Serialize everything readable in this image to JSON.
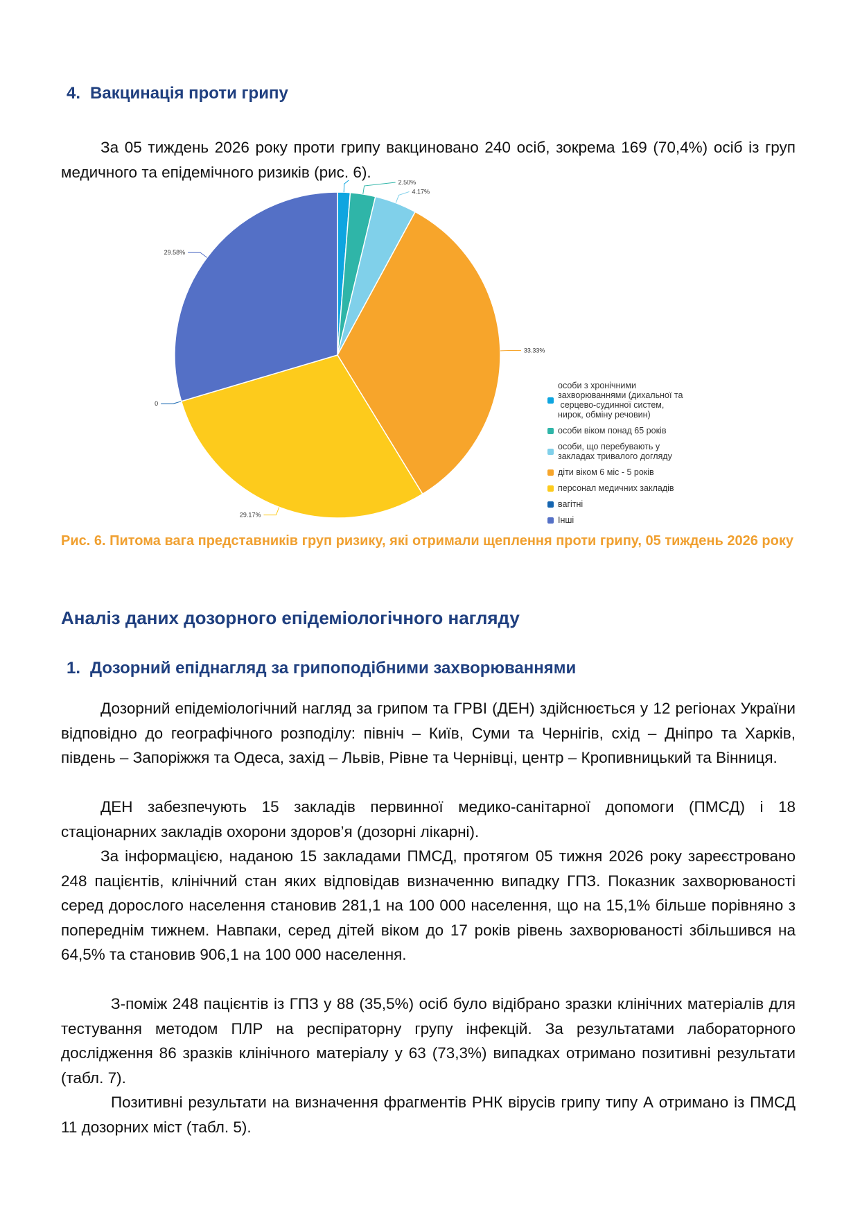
{
  "section4": {
    "number": "4.",
    "title": "Вакцинація проти грипу"
  },
  "vacc_paragraph": "За 05 тиждень 2026 року проти грипу вакциновано 240 осіб, зокрема 169 (70,4%) осіб із груп медичного та епідемічного ризиків (рис. 6).",
  "chart_data": {
    "type": "pie",
    "title": "Рис. 6. Питома вага представників груп ризику, які отримали щеплення проти грипу, 05 тиждень 2026 року",
    "legend_position": "right",
    "slices": [
      {
        "name": "особи з хронічними захворюваннями (дихальної та серцево-судинної систем, нирок, обміну речовин)",
        "value": 1.25,
        "label": "1.25%",
        "color": "#0ea5e0"
      },
      {
        "name": "особи віком понад 65 років",
        "value": 2.5,
        "label": "2.50%",
        "color": "#2fb5a8"
      },
      {
        "name": "особи, що перебувають у закладах тривалого догляду",
        "value": 4.17,
        "label": "4.17%",
        "color": "#80d0ea"
      },
      {
        "name": "діти віком 6 міс - 5 років",
        "value": 33.33,
        "label": "33.33%",
        "color": "#f7a52b"
      },
      {
        "name": "персонал медичних закладів",
        "value": 29.17,
        "label": "29.17%",
        "color": "#fdcb1c"
      },
      {
        "name": "вагітні",
        "value": 0,
        "label": "0",
        "color": "#1565b0"
      },
      {
        "name": "Інші",
        "value": 29.58,
        "label": "29.58%",
        "color": "#5470c6"
      }
    ]
  },
  "legend_lines": [
    [
      "особи з хронічними",
      "захворюваннями (дихальної та",
      " серцево-судинної систем,",
      "нирок, обміну речовин)"
    ],
    [
      "особи віком понад 65 років"
    ],
    [
      "особи, що перебувають у",
      "закладах тривалого догляду"
    ],
    [
      "діти віком 6 міс - 5 років"
    ],
    [
      "персонал медичних закладів"
    ],
    [
      "вагітні"
    ],
    [
      "Інші"
    ]
  ],
  "caption": "Рис. 6. Питома вага представників груп ризику, які отримали щеплення проти грипу, 05 тиждень 2026 року",
  "analysis_title": "Аналіз даних дозорного епідеміологічного нагляду",
  "section1": {
    "number": "1.",
    "title": "Дозорний епіднагляд за грипоподібними захворюваннями"
  },
  "paragraphs": [
    "Дозорний епідеміологічний нагляд за грипом та ГРВІ (ДЕН) здійснюється у 12 регіонах України відповідно до географічного розподілу: північ – Київ, Суми та Чернігів, схід – Дніпро та Харків, південь – Запоріжжя та Одеса, захід – Львів, Рівне та Чернівці, центр – Кропивницький та Вінниця.",
    "ДЕН забезпечують 15 закладів первинної медико-санітарної допомоги (ПМСД) і 18 стаціонарних закладів охорони здоров’я (дозорні лікарні).",
    "За інформацією, наданою 15 закладами ПМСД, протягом 05 тижня 2026 року зареєстровано 248 пацієнтів, клінічний стан яких відповідав визначенню випадку ГПЗ. Показник захворюваності серед дорослого населення становив 281,1 на 100 000 населення, що на 15,1% більше порівняно з попереднім тижнем. Навпаки, серед дітей віком до 17 років рівень захворюваності збільшився на 64,5% та становив 906,1 на 100 000 населення.",
    "З-поміж 248 пацієнтів із ГПЗ у 88 (35,5%) осіб було відібрано зразки клінічних матеріалів для тестування методом ПЛР на респіраторну групу інфекцій. За результатами лабораторного дослідження 86 зразків клінічного матеріалу у 63 (73,3%) випадках отримано позитивні результати (табл. 7).",
    "Позитивні результати на визначення фрагментів РНК вірусів грипу типу А отримано із ПМСД 11 дозорних міст (табл. 5)."
  ]
}
